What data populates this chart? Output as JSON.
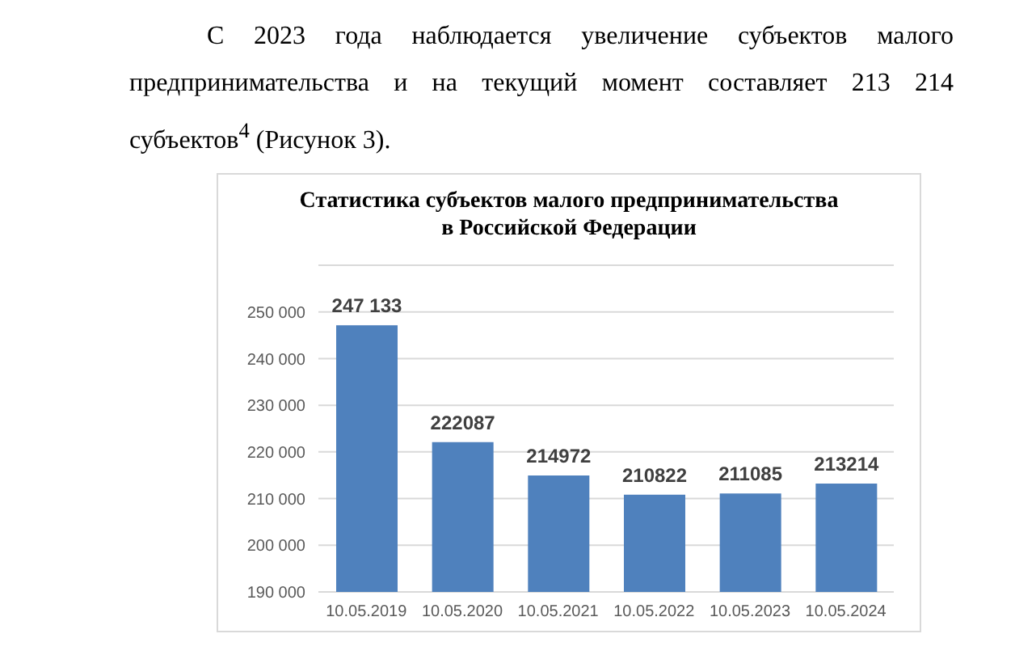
{
  "chart_data": {
    "type": "bar",
    "title": "Статистика субъектов малого предпринимательства\nв Российской Федерации",
    "annotations": [
      "С 2023 года наблюдается увеличение субъектов малого предпринимательства и на текущий момент составляет 213 214 субъектов$^{4}$ (Рисунок 3)."
    ],
    "categories": [
      "10.05.2019",
      "10.05.2020",
      "10.05.2021",
      "10.05.2022",
      "10.05.2023",
      "10.05.2024"
    ],
    "values": [
      247133,
      222087,
      214972,
      210822,
      211085,
      213214
    ],
    "value_labels": [
      "247 133",
      "222087",
      "214972",
      "210822",
      "211085",
      "213214"
    ],
    "color": "#4f81bd",
    "ylim": [
      190000,
      260000
    ],
    "yticks": [
      {
        "value": 190000,
        "label": "190 000"
      },
      {
        "value": 200000,
        "label": "200 000"
      },
      {
        "value": 210000,
        "label": "210 000"
      },
      {
        "value": 220000,
        "label": "220 000"
      },
      {
        "value": 230000,
        "label": "230 000"
      },
      {
        "value": 240000,
        "label": "240 000"
      },
      {
        "value": 250000,
        "label": "250 000"
      },
      {
        "value": 260000,
        "label": null
      }
    ],
    "grid": "y"
  }
}
